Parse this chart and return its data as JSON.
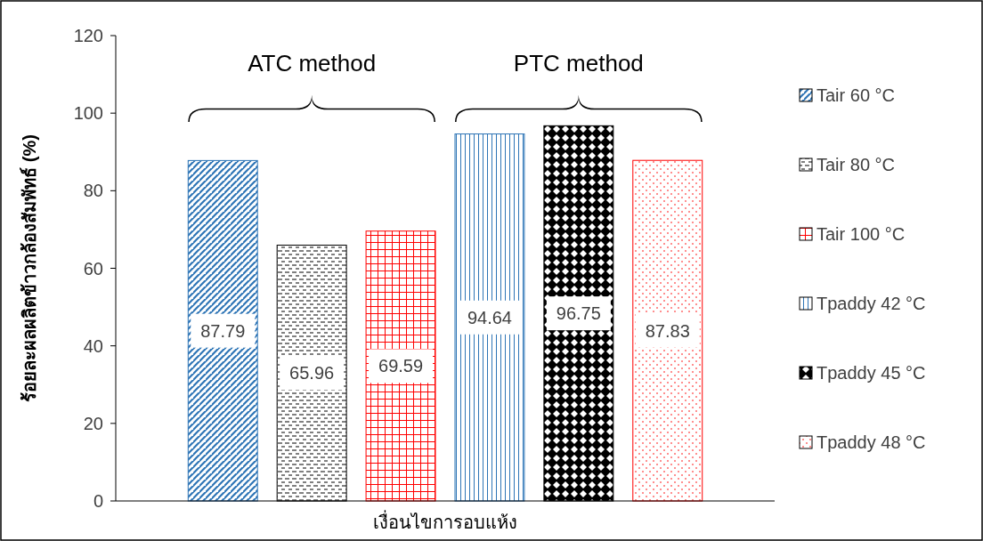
{
  "chart_data": {
    "type": "bar",
    "xlabel": "เงื่อนไขการอบแห้ง",
    "ylabel": "ร้อยละผลผลิตข้าวกล้องสัมพัทธ์ (%)",
    "categories": [
      null
    ],
    "series": [
      {
        "name": "Tair 60 °C",
        "color": "#2e75b6",
        "values": [
          87.79
        ]
      },
      {
        "name": "Tair 80 °C",
        "color": "#000000",
        "values": [
          65.96
        ]
      },
      {
        "name": "Tair 100 °C",
        "color": "#ff0000",
        "values": [
          69.59
        ]
      },
      {
        "name": "Tpaddy 42 °C",
        "color": "#2e75b6",
        "values": [
          94.64
        ]
      },
      {
        "name": "Tpaddy 45 °C",
        "color": "#000000",
        "values": [
          96.75
        ]
      },
      {
        "name": "Tpaddy 48 °C",
        "color": "#ff0000",
        "values": [
          87.83
        ]
      }
    ],
    "annotations": [
      "ATC method",
      "PTC method"
    ],
    "ylim": [
      0,
      120
    ],
    "yticks": [
      0,
      20,
      40,
      60,
      80,
      100,
      120
    ],
    "data_labels": true,
    "legend": "right",
    "grid": false
  }
}
